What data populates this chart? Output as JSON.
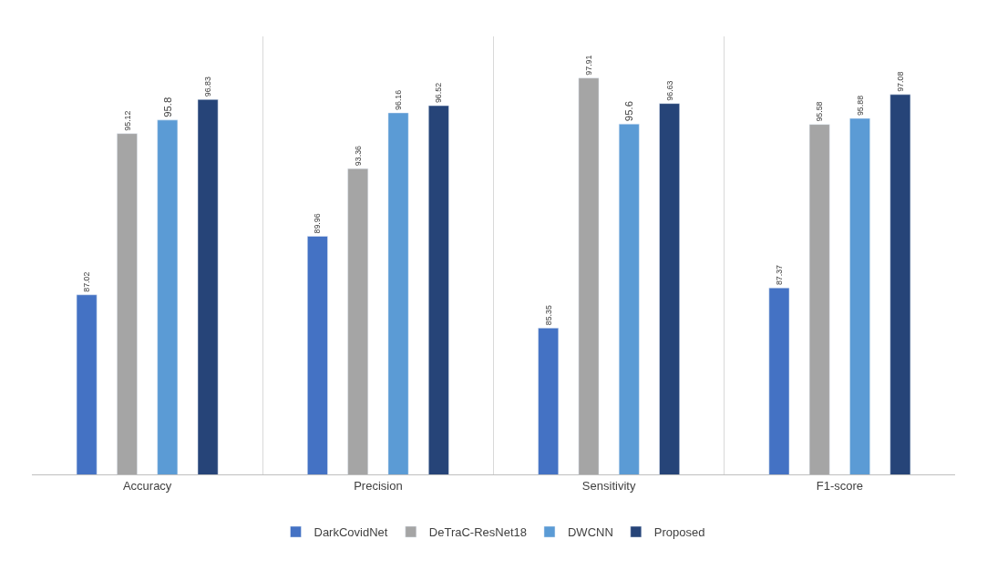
{
  "chart_data": {
    "type": "bar",
    "categories": [
      "Accuracy",
      "Precision",
      "Sensitivity",
      "F1-score"
    ],
    "series": [
      {
        "name": "DarkCovidNet",
        "color": "#4472c4",
        "values": [
          87.02,
          89.96,
          85.35,
          87.37
        ]
      },
      {
        "name": "DeTraC-ResNet18",
        "color": "#a5a5a5",
        "values": [
          95.12,
          93.36,
          97.91,
          95.58
        ]
      },
      {
        "name": "DWCNN",
        "color": "#5b9bd5",
        "values": [
          95.8,
          96.16,
          95.6,
          95.88
        ]
      },
      {
        "name": "Proposed",
        "color": "#264478",
        "values": [
          96.83,
          96.52,
          96.63,
          97.08
        ]
      }
    ],
    "ylim": [
      78,
      100
    ],
    "data_labels": true,
    "grid": "x",
    "legend": "bottom",
    "tick_labels": "x"
  }
}
